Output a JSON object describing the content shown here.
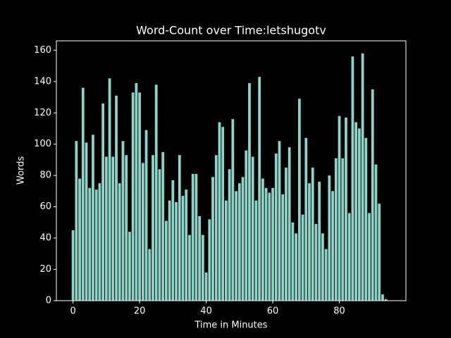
{
  "chart_data": {
    "type": "bar",
    "title": "Word-Count over Time:letshugotv",
    "xlabel": "Time in Minutes",
    "ylabel": "Words",
    "x": [
      0,
      1,
      2,
      3,
      4,
      5,
      6,
      7,
      8,
      9,
      10,
      11,
      12,
      13,
      14,
      15,
      16,
      17,
      18,
      19,
      20,
      21,
      22,
      23,
      24,
      25,
      26,
      27,
      28,
      29,
      30,
      31,
      32,
      33,
      34,
      35,
      36,
      37,
      38,
      39,
      40,
      41,
      42,
      43,
      44,
      45,
      46,
      47,
      48,
      49,
      50,
      51,
      52,
      53,
      54,
      55,
      56,
      57,
      58,
      59,
      60,
      61,
      62,
      63,
      64,
      65,
      66,
      67,
      68,
      69,
      70,
      71,
      72,
      73,
      74,
      75,
      76,
      77,
      78,
      79,
      80,
      81,
      82,
      83,
      84,
      85,
      86,
      87,
      88,
      89,
      90,
      91,
      92,
      93,
      94
    ],
    "values": [
      45,
      102,
      78,
      136,
      101,
      72,
      106,
      71,
      75,
      126,
      92,
      142,
      92,
      131,
      75,
      102,
      93,
      44,
      133,
      139,
      133,
      88,
      109,
      33,
      93,
      138,
      84,
      95,
      51,
      64,
      77,
      63,
      93,
      67,
      71,
      42,
      81,
      81,
      54,
      42,
      18,
      52,
      79,
      93,
      114,
      111,
      64,
      84,
      116,
      70,
      75,
      79,
      96,
      139,
      92,
      64,
      143,
      78,
      72,
      69,
      72,
      94,
      102,
      68,
      85,
      98,
      50,
      43,
      129,
      55,
      104,
      75,
      85,
      49,
      76,
      43,
      33,
      80,
      70,
      91,
      118,
      91,
      117,
      56,
      156,
      114,
      110,
      158,
      104,
      56,
      135,
      87,
      62,
      4,
      1
    ],
    "color": "#8dd3c7",
    "xlim": [
      -5,
      100
    ],
    "ylim": [
      0,
      166
    ],
    "xticks": [
      0,
      20,
      40,
      60,
      80
    ],
    "yticks": [
      0,
      20,
      40,
      60,
      80,
      100,
      120,
      140,
      160
    ]
  }
}
